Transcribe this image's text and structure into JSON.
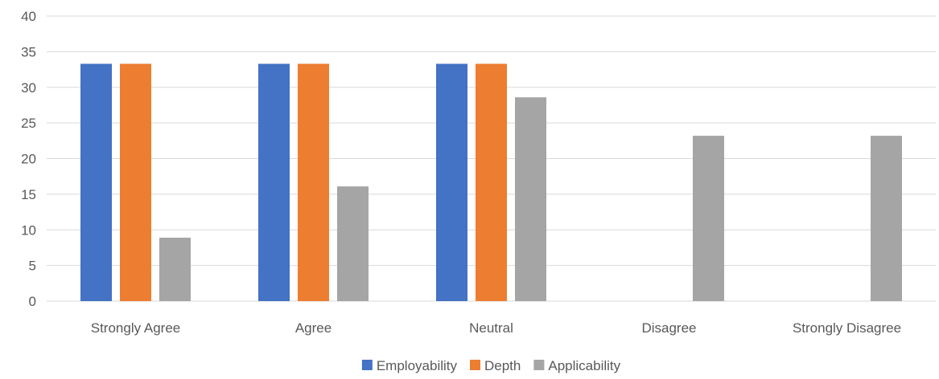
{
  "chart_data": {
    "type": "bar",
    "title": "",
    "xlabel": "",
    "ylabel": "",
    "ylim": [
      0,
      40
    ],
    "yticks": [
      0,
      5,
      10,
      15,
      20,
      25,
      30,
      35,
      40
    ],
    "grid": true,
    "legend_position": "bottom",
    "categories": [
      "Strongly Agree",
      "Agree",
      "Neutral",
      "Disagree",
      "Strongly Disagree"
    ],
    "series": [
      {
        "name": "Employability",
        "color": "#4472C4",
        "values": [
          33.3,
          33.3,
          33.3,
          0,
          0
        ]
      },
      {
        "name": "Depth",
        "color": "#ED7D31",
        "values": [
          33.3,
          33.3,
          33.3,
          0,
          0
        ]
      },
      {
        "name": "Applicability",
        "color": "#A5A5A5",
        "values": [
          8.9,
          16.1,
          28.6,
          23.2,
          23.2
        ]
      }
    ]
  }
}
